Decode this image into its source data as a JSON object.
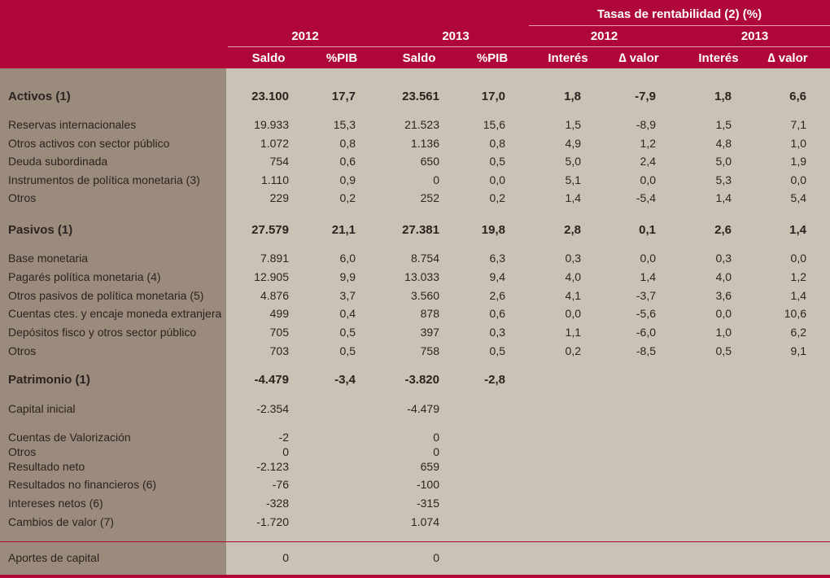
{
  "header": {
    "tasas": "Tasas de rentabilidad (2) (%)",
    "year_2012": "2012",
    "year_2013": "2013",
    "tasas_2012": "2012",
    "tasas_2013": "2013",
    "cols": [
      "Saldo",
      "%PIB",
      "Saldo",
      "%PIB",
      "Interés",
      "∆ valor",
      "Interés",
      "∆ valor"
    ]
  },
  "rows": [
    {
      "label": "Activos (1)",
      "bold": true,
      "vals": [
        "23.100",
        "17,7",
        "23.561",
        "17,0",
        "1,8",
        "-7,9",
        "1,8",
        "6,6"
      ]
    },
    {
      "label": "Reservas internacionales",
      "vals": [
        "19.933",
        "15,3",
        "21.523",
        "15,6",
        "1,5",
        "-8,9",
        "1,5",
        "7,1"
      ]
    },
    {
      "label": "Otros activos con sector público",
      "vals": [
        "1.072",
        "0,8",
        "1.136",
        "0,8",
        "4,9",
        "1,2",
        "4,8",
        "1,0"
      ]
    },
    {
      "label": "Deuda subordinada",
      "vals": [
        "754",
        "0,6",
        "650",
        "0,5",
        "5,0",
        "2,4",
        "5,0",
        "1,9"
      ]
    },
    {
      "label": "Instrumentos de política monetaria (3)",
      "vals": [
        "1.110",
        "0,9",
        "0",
        "0,0",
        "5,1",
        "0,0",
        "5,3",
        "0,0"
      ]
    },
    {
      "label": "Otros",
      "vals": [
        "229",
        "0,2",
        "252",
        "0,2",
        "1,4",
        "-5,4",
        "1,4",
        "5,4"
      ]
    },
    {
      "label": "Pasivos (1)",
      "bold": true,
      "vals": [
        "27.579",
        "21,1",
        "27.381",
        "19,8",
        "2,8",
        "0,1",
        "2,6",
        "1,4"
      ]
    },
    {
      "label": "Base monetaria",
      "vals": [
        "7.891",
        "6,0",
        "8.754",
        "6,3",
        "0,3",
        "0,0",
        "0,3",
        "0,0"
      ]
    },
    {
      "label": "Pagarés política monetaria (4)",
      "vals": [
        "12.905",
        "9,9",
        "13.033",
        "9,4",
        "4,0",
        "1,4",
        "4,0",
        "1,2"
      ]
    },
    {
      "label": "Otros pasivos de política monetaria (5)",
      "vals": [
        "4.876",
        "3,7",
        "3.560",
        "2,6",
        "4,1",
        "-3,7",
        "3,6",
        "1,4"
      ]
    },
    {
      "label": "Cuentas ctes. y encaje moneda extranjera",
      "vals": [
        "499",
        "0,4",
        "878",
        "0,6",
        "0,0",
        "-5,6",
        "0,0",
        "10,6"
      ]
    },
    {
      "label": "Depósitos fisco y otros sector público",
      "vals": [
        "705",
        "0,5",
        "397",
        "0,3",
        "1,1",
        "-6,0",
        "1,0",
        "6,2"
      ]
    },
    {
      "label": "Otros",
      "vals": [
        "703",
        "0,5",
        "758",
        "0,5",
        "0,2",
        "-8,5",
        "0,5",
        "9,1"
      ]
    },
    {
      "label": "Patrimonio (1)",
      "bold": true,
      "vals": [
        "-4.479",
        "-3,4",
        "-3.820",
        "-2,8",
        "",
        "",
        "",
        ""
      ]
    },
    {
      "label": "Capital inicial",
      "vals": [
        "-2.354",
        "",
        "-4.479",
        "",
        "",
        "",
        "",
        ""
      ]
    },
    {
      "label": "Cuentas de Valorización",
      "vals": [
        "-2",
        "",
        "0",
        "",
        "",
        "",
        "",
        ""
      ]
    },
    {
      "label": "Otros",
      "vals": [
        "0",
        "",
        "0",
        "",
        "",
        "",
        "",
        ""
      ]
    },
    {
      "label": "Resultado neto",
      "vals": [
        "-2.123",
        "",
        "659",
        "",
        "",
        "",
        "",
        ""
      ]
    },
    {
      "label": "Resultados no financieros (6)",
      "vals": [
        "-76",
        "",
        "-100",
        "",
        "",
        "",
        "",
        ""
      ]
    },
    {
      "label": "Intereses netos (6)",
      "vals": [
        "-328",
        "",
        "-315",
        "",
        "",
        "",
        "",
        ""
      ]
    },
    {
      "label": "Cambios de valor (7)",
      "vals": [
        "-1.720",
        "",
        "1.074",
        "",
        "",
        "",
        "",
        ""
      ]
    },
    {
      "label": "Aportes de capital",
      "vals": [
        "0",
        "",
        "0",
        "",
        "",
        "",
        "",
        ""
      ]
    }
  ]
}
